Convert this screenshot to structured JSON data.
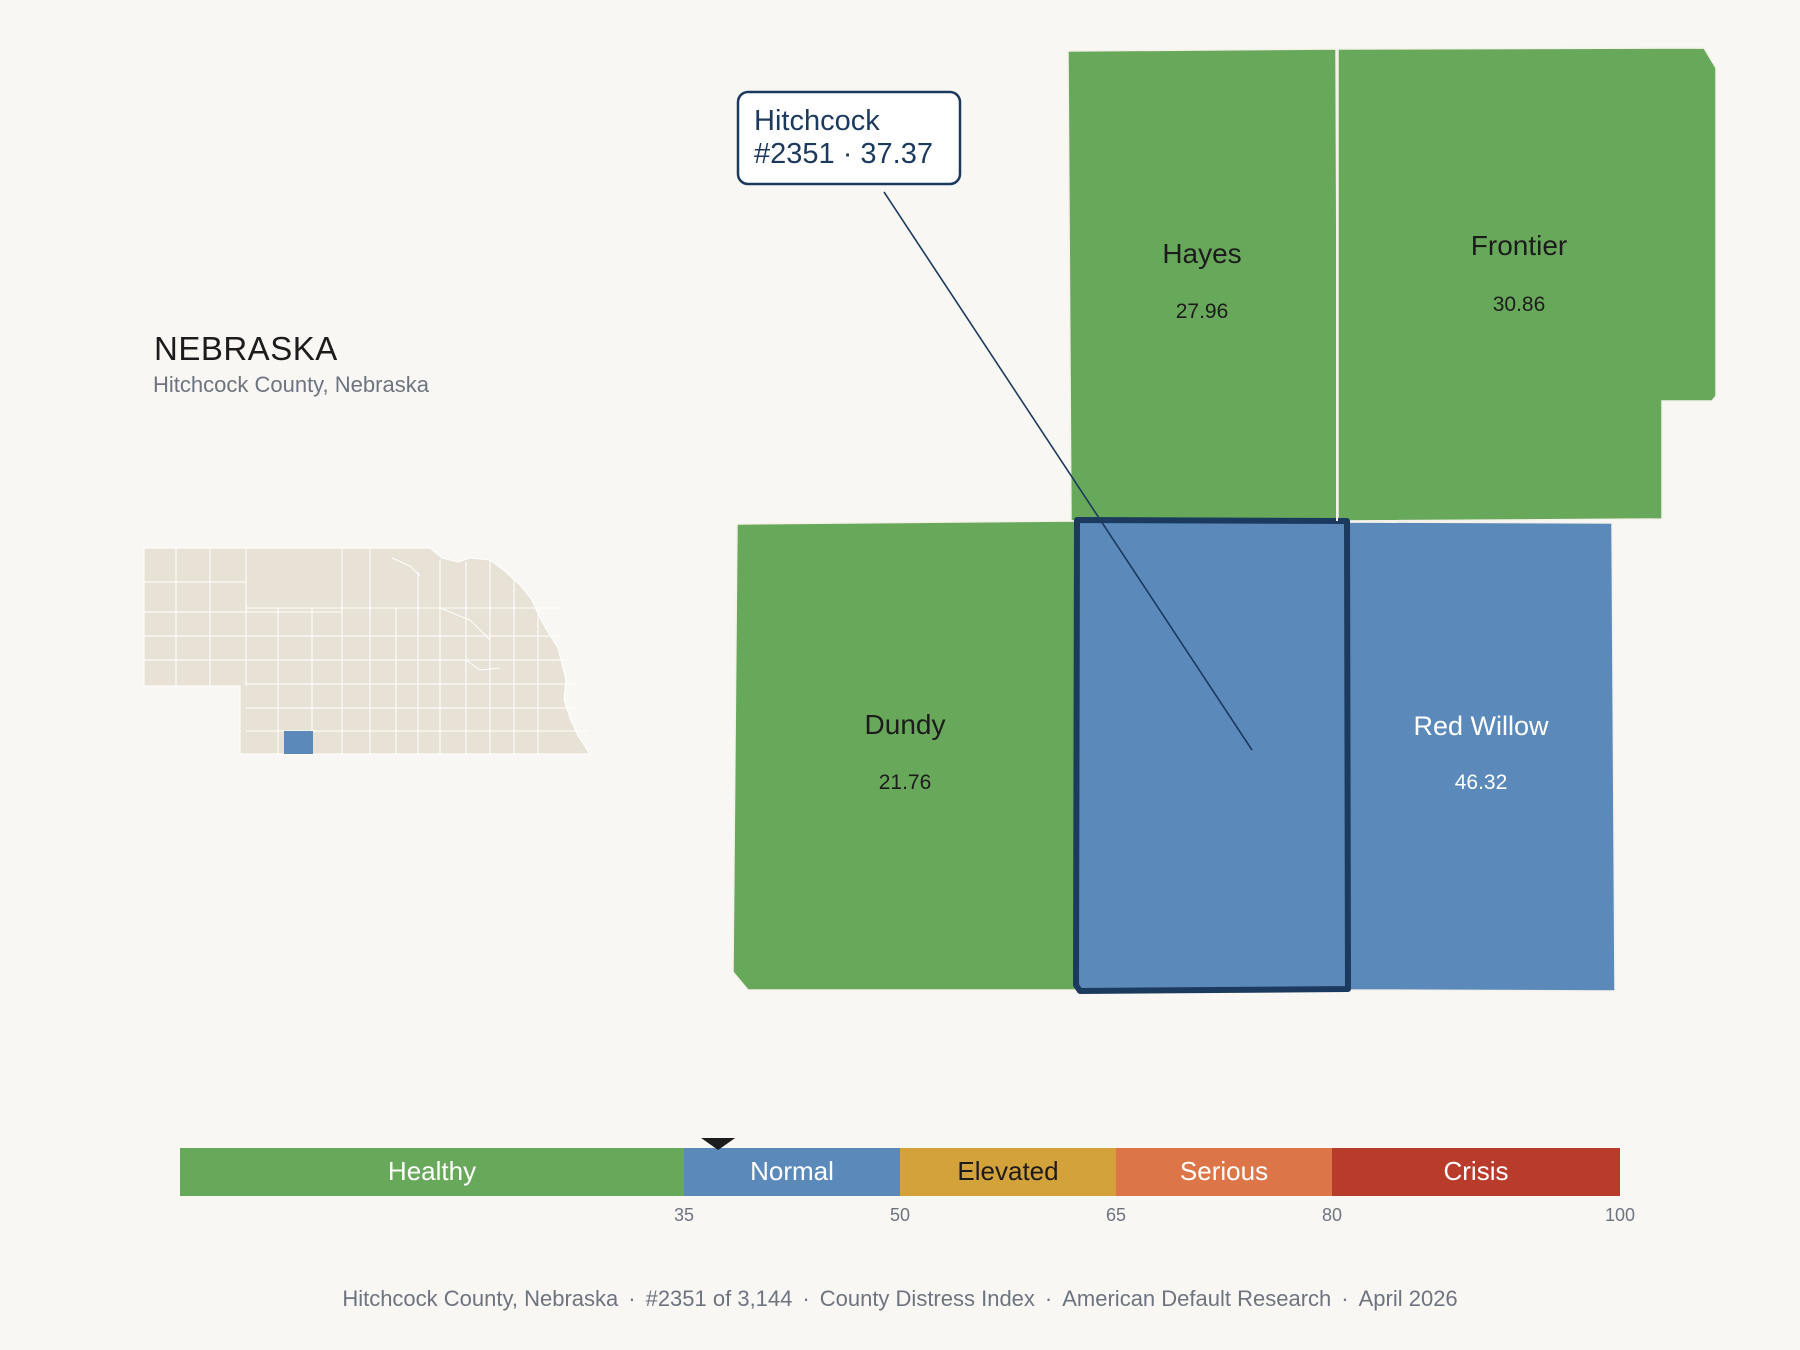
{
  "state": {
    "title": "NEBRASKA",
    "subtitle": "Hitchcock County, Nebraska"
  },
  "callout": {
    "county": "Hitchcock",
    "line2": "#2351 · 37.37"
  },
  "counties": {
    "hayes": {
      "name": "Hayes",
      "value": "27.96",
      "color": "#68a85a"
    },
    "frontier": {
      "name": "Frontier",
      "value": "30.86",
      "color": "#68a85a"
    },
    "dundy": {
      "name": "Dundy",
      "value": "21.76",
      "color": "#68a85a"
    },
    "hitchcock": {
      "name": "Hitchcock",
      "value": "37.37",
      "color": "#5b8aba"
    },
    "red_willow": {
      "name": "Red Willow",
      "value": "46.32",
      "color": "#5b8aba"
    }
  },
  "legend": {
    "min": 0,
    "max": 100,
    "marker_value": 37.37,
    "bands": [
      {
        "label": "Healthy",
        "from": 0,
        "to": 35,
        "color": "#68a85a",
        "text_color": "#ffffff"
      },
      {
        "label": "Normal",
        "from": 35,
        "to": 50,
        "color": "#5b8aba",
        "text_color": "#ffffff"
      },
      {
        "label": "Elevated",
        "from": 50,
        "to": 65,
        "color": "#d4a23a",
        "text_color": "#1c1c1c"
      },
      {
        "label": "Serious",
        "from": 65,
        "to": 80,
        "color": "#dc7648",
        "text_color": "#ffffff"
      },
      {
        "label": "Crisis",
        "from": 80,
        "to": 100,
        "color": "#b93b2c",
        "text_color": "#ffffff"
      }
    ],
    "ticks": [
      "35",
      "50",
      "65",
      "80",
      "100"
    ]
  },
  "footer": {
    "place": "Hitchcock County, Nebraska",
    "rank": "#2351 of 3,144",
    "index": "County Distress Index",
    "source": "American Default Research",
    "date": "April 2026"
  },
  "colors": {
    "inset_fill": "#e8e2d6",
    "inset_highlight": "#5b8aba",
    "outline": "#1c3a5e"
  }
}
